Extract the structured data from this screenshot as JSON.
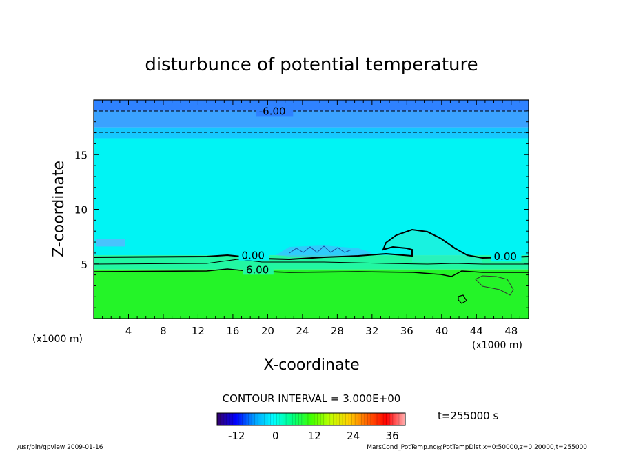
{
  "chart_data": {
    "type": "heatmap",
    "title": "disturbunce of potential temperature",
    "xlabel": "X-coordinate",
    "ylabel": "Z-coordinate",
    "x_unit_left": "(x1000 m)",
    "x_unit_right": "(x1000 m)",
    "xlim": [
      0,
      50
    ],
    "ylim": [
      0,
      20
    ],
    "xticks": [
      4,
      8,
      12,
      16,
      20,
      24,
      28,
      32,
      36,
      40,
      44,
      48
    ],
    "yticks": [
      5,
      10,
      15
    ],
    "contour_interval": "CONTOUR INTERVAL = 3.000E+00",
    "time_label": "t=255000 s",
    "colorbar": {
      "ticks": [
        -12,
        0,
        12,
        24,
        36
      ],
      "range": [
        -18,
        40
      ],
      "colors": [
        "#34006a",
        "#0000ff",
        "#00a0ff",
        "#00ffff",
        "#00ff80",
        "#40ff00",
        "#c0ff00",
        "#ffd000",
        "#ff6000",
        "#ff0000",
        "#ffb0b0"
      ]
    },
    "layers": [
      {
        "z": [
          19,
          20
        ],
        "value": -12,
        "color": "#2f82ff"
      },
      {
        "z": [
          17.5,
          19
        ],
        "value": -10,
        "color": "#3aa2ff"
      },
      {
        "z": [
          16.5,
          17.5
        ],
        "value": -7,
        "color": "#16c8ff"
      },
      {
        "z": [
          5.8,
          16.5
        ],
        "value": -2,
        "color": "#00f4f4"
      },
      {
        "z": [
          4.5,
          5.8
        ],
        "value": 3,
        "color": "#22f7a2"
      },
      {
        "z": [
          0,
          4.5
        ],
        "value": 10,
        "color": "#24f428"
      }
    ],
    "contour_labels": [
      {
        "text": "-6.00",
        "x": 19,
        "z": 18.9
      },
      {
        "text": "0.00",
        "x": 17,
        "z": 5.7
      },
      {
        "text": "6.00",
        "x": 17.5,
        "z": 4.4
      },
      {
        "text": "0.00",
        "x": 46,
        "z": 5.6
      }
    ]
  },
  "footer": {
    "left": "/usr/bin/gpview   2009-01-16",
    "right": "MarsCond_PotTemp.nc@PotTempDist,x=0:50000,z=0:20000,t=255000"
  }
}
